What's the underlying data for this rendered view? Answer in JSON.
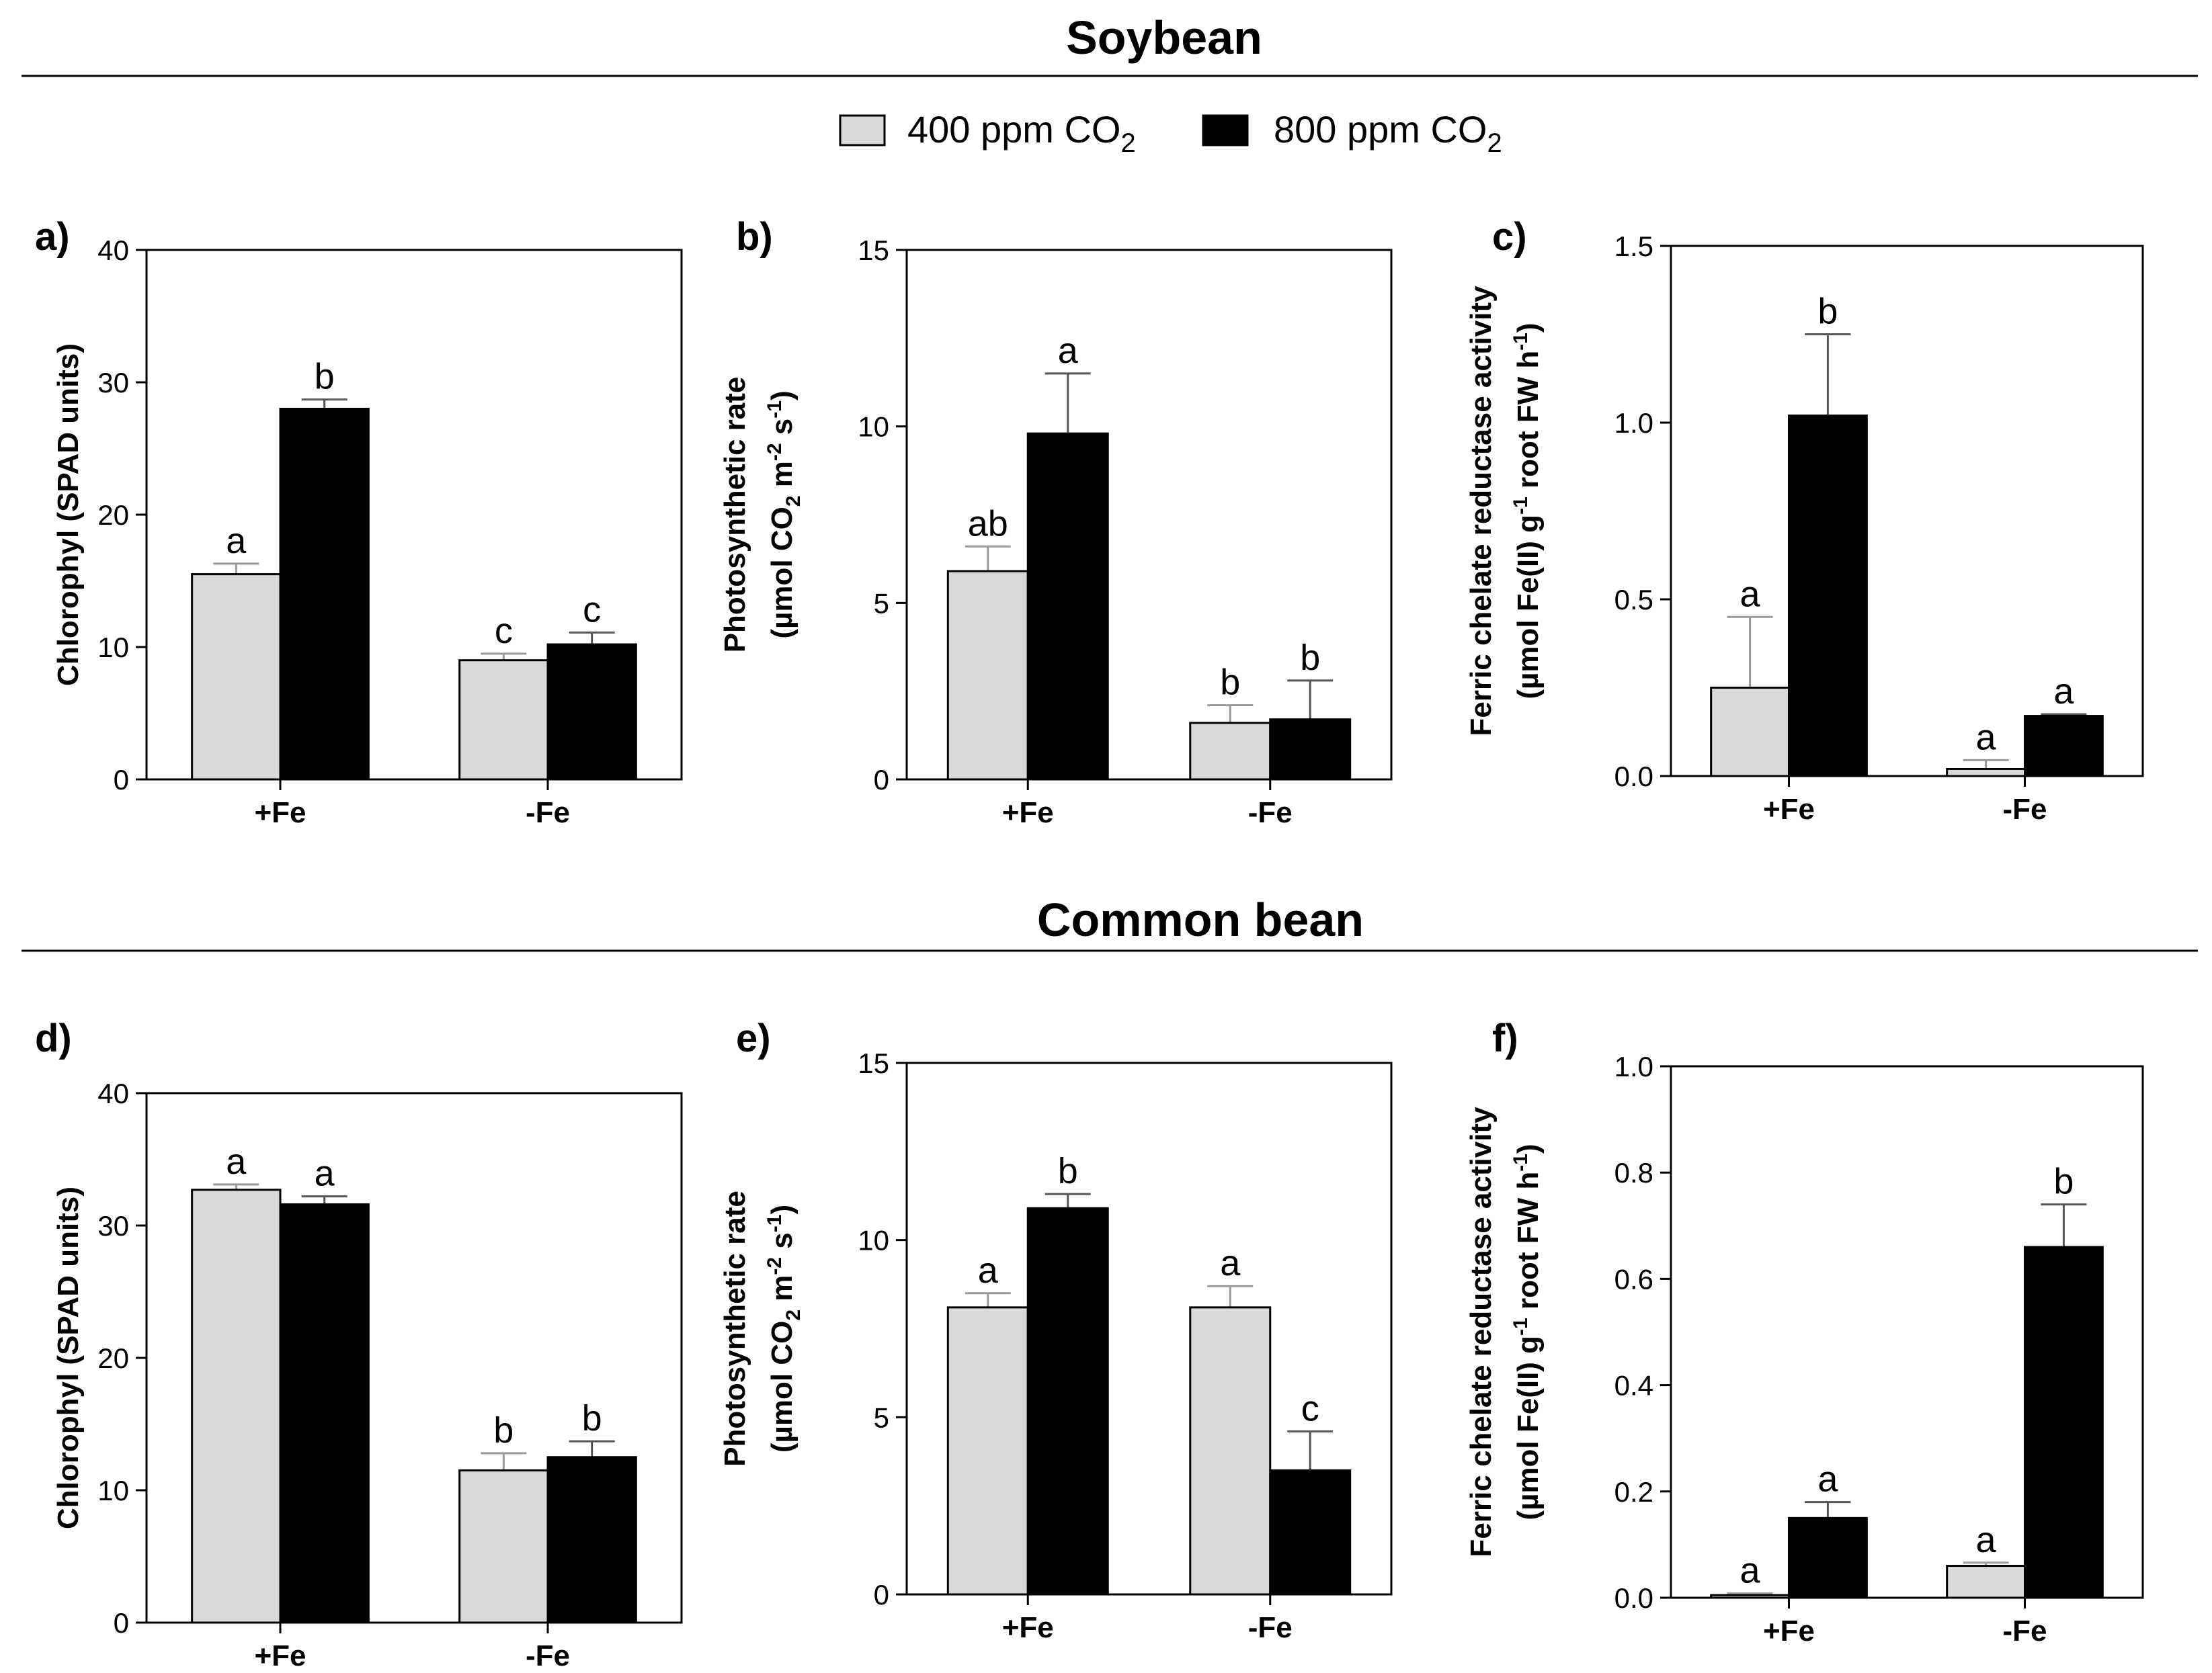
{
  "sections": {
    "soybean": "Soybean",
    "common_bean": "Common bean"
  },
  "legend": {
    "items": [
      {
        "label": "400 ppm CO",
        "subscript": "2",
        "color": "#d9d9d9"
      },
      {
        "label": "800 ppm CO",
        "subscript": "2",
        "color": "#000000"
      }
    ]
  },
  "colors": {
    "series_400": "#d9d9d9",
    "series_800": "#000000",
    "error_400": "#999999",
    "error_800": "#555555"
  },
  "chart_data": [
    {
      "id": "a",
      "label": "a)",
      "type": "bar",
      "section": "Soybean",
      "ylabel_lines": [
        [
          {
            "t": "Chlorophyl (SPAD units)"
          }
        ]
      ],
      "ylim": [
        0,
        40
      ],
      "yticks": [
        "0",
        "10",
        "20",
        "30",
        "40"
      ],
      "categories": [
        "+Fe",
        "-Fe"
      ],
      "series": [
        {
          "name": "400 ppm CO2",
          "values": [
            15.5,
            9.0
          ],
          "errors": [
            0.8,
            0.5
          ],
          "letters": [
            "a",
            "c"
          ]
        },
        {
          "name": "800 ppm CO2",
          "values": [
            28.0,
            10.2
          ],
          "errors": [
            0.7,
            0.9
          ],
          "letters": [
            "b",
            "c"
          ]
        }
      ]
    },
    {
      "id": "b",
      "label": "b)",
      "type": "bar",
      "section": "Soybean",
      "ylabel_lines": [
        [
          {
            "t": "Photosynthetic rate"
          }
        ],
        [
          {
            "t": "(µmol CO"
          },
          {
            "t": "2",
            "s": "sub"
          },
          {
            "t": " m"
          },
          {
            "t": "-2",
            "s": "sup"
          },
          {
            "t": " s"
          },
          {
            "t": "-1",
            "s": "sup"
          },
          {
            "t": ")"
          }
        ]
      ],
      "ylim": [
        0,
        15
      ],
      "yticks": [
        "0",
        "5",
        "10",
        "15"
      ],
      "categories": [
        "+Fe",
        "-Fe"
      ],
      "series": [
        {
          "name": "400 ppm CO2",
          "values": [
            5.9,
            1.6
          ],
          "errors": [
            0.7,
            0.5
          ],
          "letters": [
            "ab",
            "b"
          ]
        },
        {
          "name": "800 ppm CO2",
          "values": [
            9.8,
            1.7
          ],
          "errors": [
            1.7,
            1.1
          ],
          "letters": [
            "a",
            "b"
          ]
        }
      ]
    },
    {
      "id": "c",
      "label": "c)",
      "type": "bar",
      "section": "Soybean",
      "ylabel_lines": [
        [
          {
            "t": "Ferric chelate reductase activity"
          }
        ],
        [
          {
            "t": "(µmol Fe(II) g"
          },
          {
            "t": "-1",
            "s": "sup"
          },
          {
            "t": " root FW h"
          },
          {
            "t": "-1",
            "s": "sup"
          },
          {
            "t": ")"
          }
        ]
      ],
      "ylim": [
        0,
        1.5
      ],
      "yticks": [
        "0.0",
        "0.5",
        "1.0",
        "1.5"
      ],
      "categories": [
        "+Fe",
        "-Fe"
      ],
      "series": [
        {
          "name": "400 ppm CO2",
          "values": [
            0.25,
            0.02
          ],
          "errors": [
            0.2,
            0.025
          ],
          "letters": [
            "a",
            "a"
          ]
        },
        {
          "name": "800 ppm CO2",
          "values": [
            1.02,
            0.17
          ],
          "errors": [
            0.23,
            0.005
          ],
          "letters": [
            "b",
            "a"
          ]
        }
      ]
    },
    {
      "id": "d",
      "label": "d)",
      "type": "bar",
      "section": "Common bean",
      "ylabel_lines": [
        [
          {
            "t": "Chlorophyl (SPAD units)"
          }
        ]
      ],
      "ylim": [
        0,
        40
      ],
      "yticks": [
        "0",
        "10",
        "20",
        "30",
        "40"
      ],
      "categories": [
        "+Fe",
        "-Fe"
      ],
      "series": [
        {
          "name": "400 ppm CO2",
          "values": [
            32.7,
            11.5
          ],
          "errors": [
            0.4,
            1.3
          ],
          "letters": [
            "a",
            "b"
          ]
        },
        {
          "name": "800 ppm CO2",
          "values": [
            31.6,
            12.5
          ],
          "errors": [
            0.6,
            1.2
          ],
          "letters": [
            "a",
            "b"
          ]
        }
      ]
    },
    {
      "id": "e",
      "label": "e)",
      "type": "bar",
      "section": "Common bean",
      "ylabel_lines": [
        [
          {
            "t": "Photosynthetic rate"
          }
        ],
        [
          {
            "t": "(µmol CO"
          },
          {
            "t": "2",
            "s": "sub"
          },
          {
            "t": " m"
          },
          {
            "t": "-2",
            "s": "sup"
          },
          {
            "t": " s"
          },
          {
            "t": "-1",
            "s": "sup"
          },
          {
            "t": ")"
          }
        ]
      ],
      "ylim": [
        0,
        15
      ],
      "yticks": [
        "0",
        "5",
        "10",
        "15"
      ],
      "categories": [
        "+Fe",
        "-Fe"
      ],
      "series": [
        {
          "name": "400 ppm CO2",
          "values": [
            8.1,
            8.1
          ],
          "errors": [
            0.4,
            0.6
          ],
          "letters": [
            "a",
            "a"
          ]
        },
        {
          "name": "800 ppm CO2",
          "values": [
            10.9,
            3.5
          ],
          "errors": [
            0.4,
            1.1
          ],
          "letters": [
            "b",
            "c"
          ]
        }
      ]
    },
    {
      "id": "f",
      "label": "f)",
      "type": "bar",
      "section": "Common bean",
      "ylabel_lines": [
        [
          {
            "t": "Ferric chelate reductase activity"
          }
        ],
        [
          {
            "t": "(µmol Fe(II) g"
          },
          {
            "t": "-1",
            "s": "sup"
          },
          {
            "t": " root FW h"
          },
          {
            "t": "-1",
            "s": "sup"
          },
          {
            "t": ")"
          }
        ]
      ],
      "ylim": [
        0,
        1.0
      ],
      "yticks": [
        "0.0",
        "0.2",
        "0.4",
        "0.6",
        "0.8",
        "1.0"
      ],
      "categories": [
        "+Fe",
        "-Fe"
      ],
      "series": [
        {
          "name": "400 ppm CO2",
          "values": [
            0.005,
            0.06
          ],
          "errors": [
            0.003,
            0.006
          ],
          "letters": [
            "a",
            "a"
          ]
        },
        {
          "name": "800 ppm CO2",
          "values": [
            0.15,
            0.66
          ],
          "errors": [
            0.03,
            0.08
          ],
          "letters": [
            "a",
            "b"
          ]
        }
      ]
    }
  ]
}
